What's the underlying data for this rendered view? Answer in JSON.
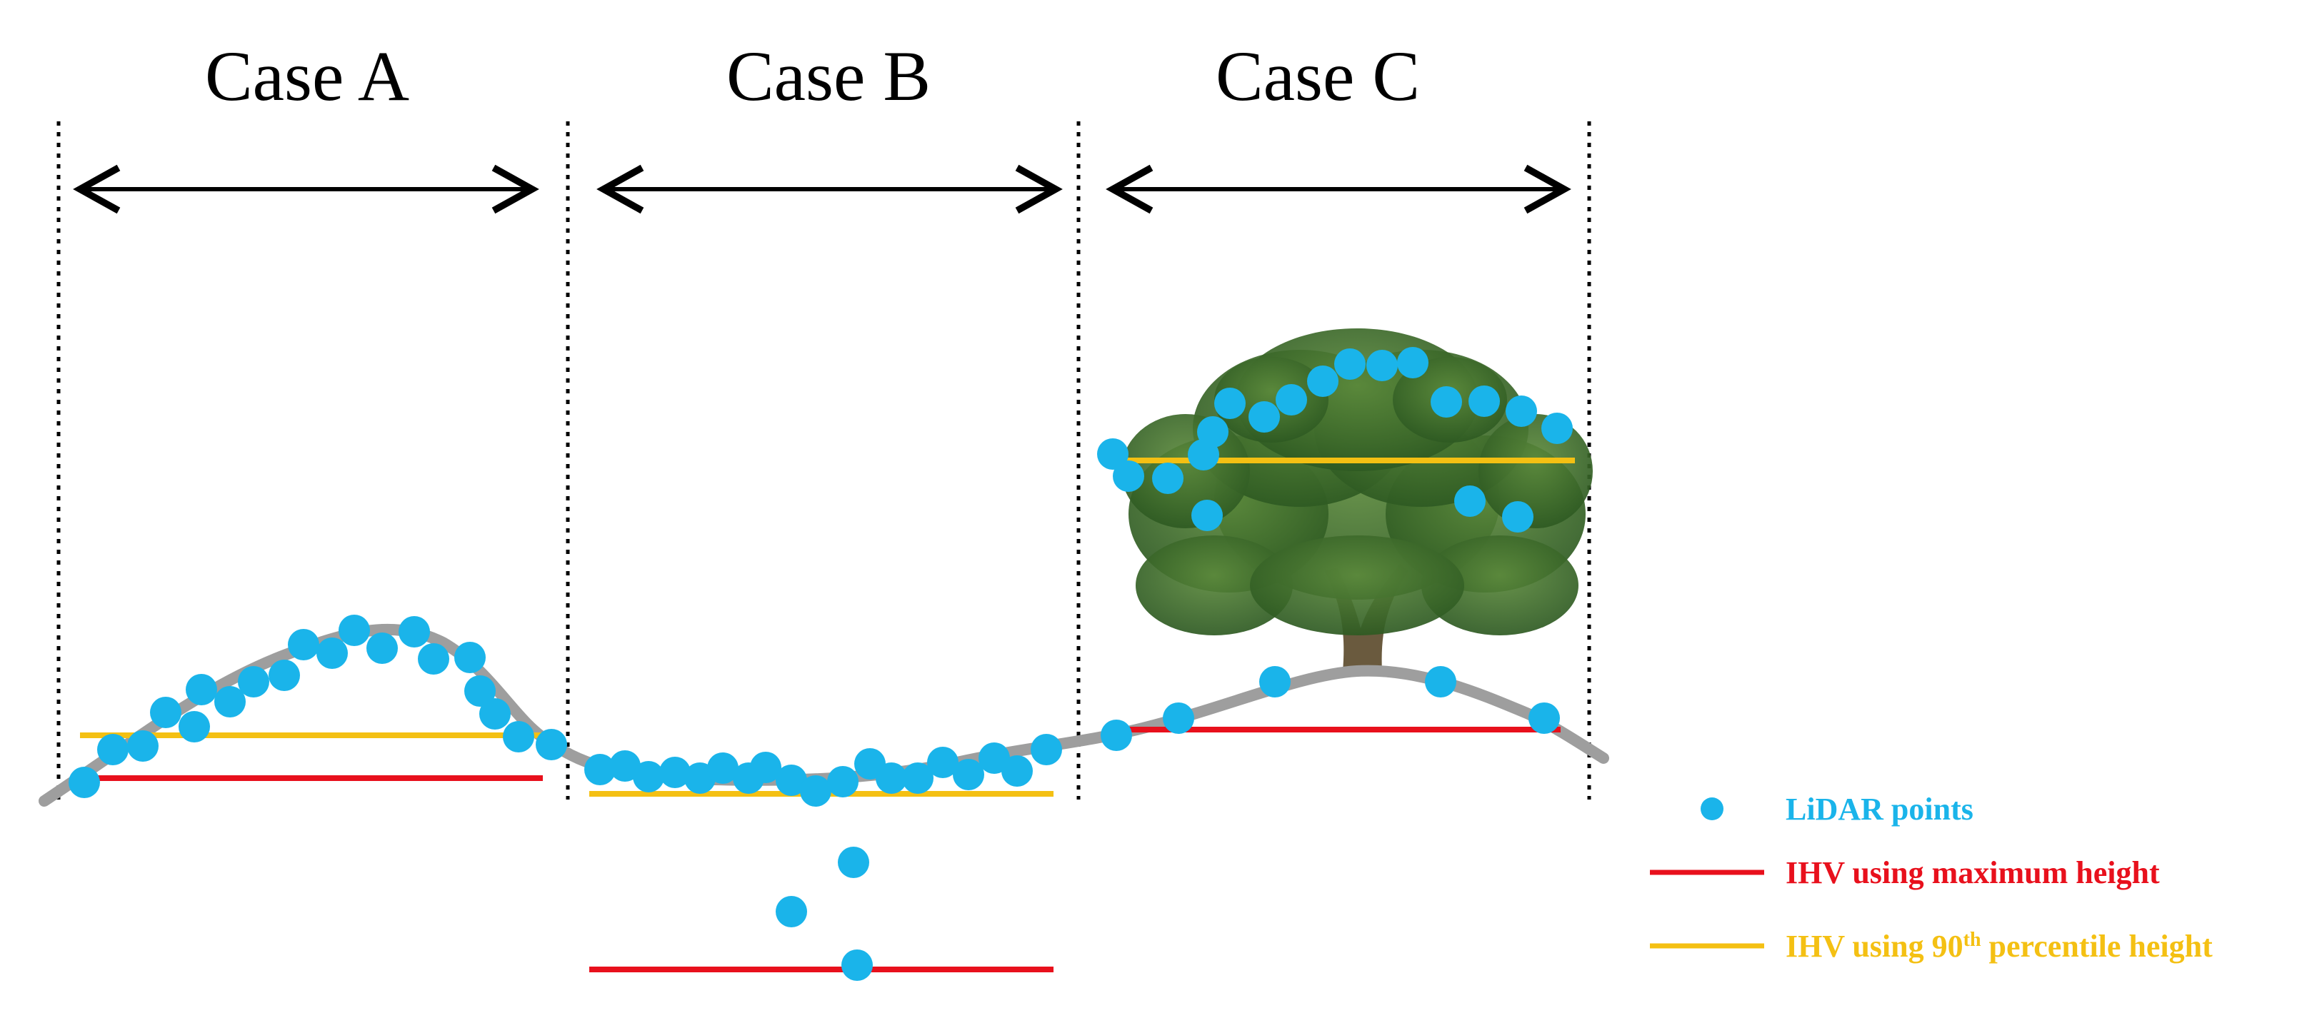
{
  "cases": [
    {
      "id": "a",
      "title": "Case A"
    },
    {
      "id": "b",
      "title": "Case B"
    },
    {
      "id": "c",
      "title": "Case C"
    }
  ],
  "legend": {
    "points": "LiDAR points",
    "max_height": "IHV using maximum height",
    "p90_prefix": "IHV using 90",
    "p90_sup": "th",
    "p90_suffix": " percentile height"
  },
  "colors": {
    "point": "#1ab4ea",
    "max_line": "#e8101c",
    "p90_line": "#f4c013",
    "ground": "#9e9e9e",
    "foliage": "#3d6b2a",
    "trunk": "#6a5a3e"
  }
}
